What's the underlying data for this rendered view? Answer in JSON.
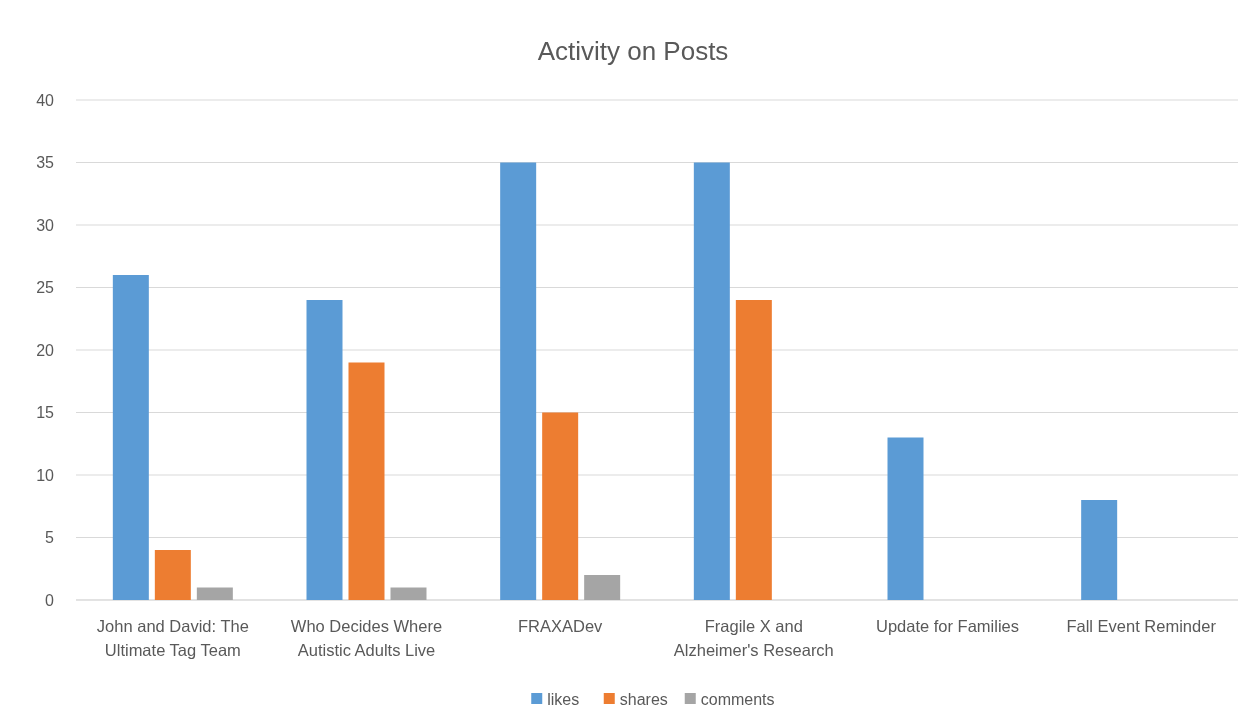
{
  "chart_data": {
    "type": "bar",
    "title": "Activity on Posts",
    "categories": [
      "John and David: The Ultimate Tag Team",
      "Who Decides Where Autistic Adults Live",
      "FRAXADev",
      "Fragile X and Alzheimer's Research",
      "Update for Families",
      "Fall Event Reminder"
    ],
    "series": [
      {
        "name": "likes",
        "color": "#5b9bd5",
        "values": [
          26,
          24,
          35,
          35,
          13,
          8
        ]
      },
      {
        "name": "shares",
        "color": "#ed7d31",
        "values": [
          4,
          19,
          15,
          24,
          0,
          0
        ]
      },
      {
        "name": "comments",
        "color": "#a5a5a5",
        "values": [
          1,
          1,
          2,
          0,
          0,
          0
        ]
      }
    ],
    "ylim": [
      0,
      40
    ],
    "yticks": [
      0,
      5,
      10,
      15,
      20,
      25,
      30,
      35,
      40
    ],
    "grid": "y",
    "legend": "bottom"
  }
}
